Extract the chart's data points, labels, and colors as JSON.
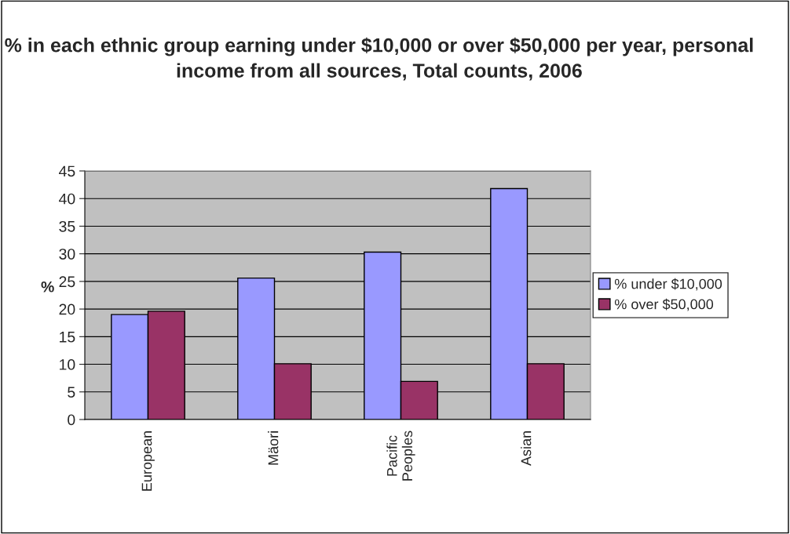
{
  "chart_data": {
    "type": "bar",
    "title": "% in each ethnic group earning under $10,000 or over $50,000 per year, personal income from all sources, Total counts, 2006",
    "ylabel": "%",
    "categories": [
      "European",
      "Mäori",
      "Pacific\nPeoples",
      "Asian"
    ],
    "series": [
      {
        "name": "% under $10,000",
        "color": "#9999ff",
        "values": [
          19.0,
          25.6,
          30.3,
          41.8
        ]
      },
      {
        "name": "% over $50,000",
        "color": "#993366",
        "values": [
          19.6,
          10.1,
          6.9,
          10.1
        ]
      }
    ],
    "ylim": [
      0,
      45
    ],
    "yticks": [
      0,
      5,
      10,
      15,
      20,
      25,
      30,
      35,
      40,
      45
    ],
    "grid": "y",
    "legend": "right"
  }
}
